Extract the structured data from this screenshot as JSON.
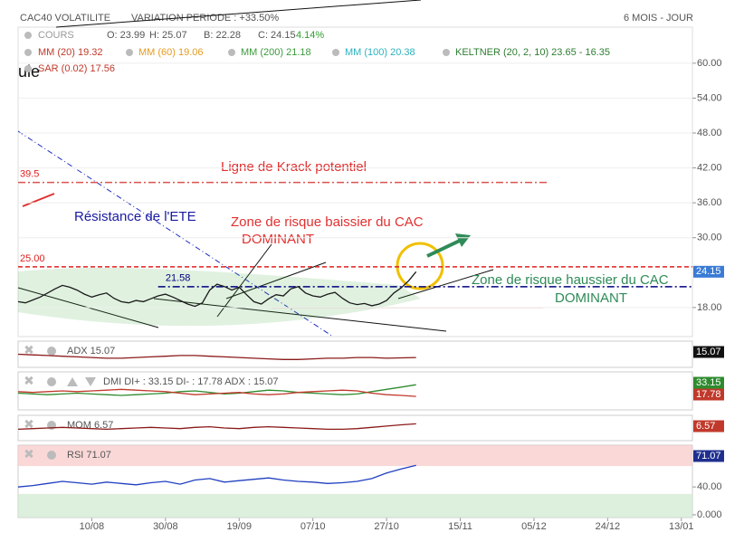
{
  "header": {
    "title": "CAC40 VOLATILITE",
    "variation": "VARIATION PERIODE : +33.50%",
    "period": "6 MOIS - JOUR"
  },
  "legend": {
    "cours": "COURS",
    "open": "O: 23.99",
    "high": "H: 25.07",
    "low": "B: 22.28",
    "close": "C: 24.15",
    "change": "4.14%",
    "mm20": "MM (20) 19.32",
    "mm60": "MM (60) 19.06",
    "mm200": "MM (200) 21.18",
    "mm100": "MM (100) 20.38",
    "keltner": "KELTNER (20, 2, 10) 23.65 - 16.35",
    "sar": "SAR (0.02) 17.56",
    "cut": "ule"
  },
  "annotations": [
    "Ligne de Krack potentiel",
    "Résistance de l'ETE",
    "Zone de risque baissier du CAC",
    "DOMINANT",
    "Zone de risque haussier du CAC",
    "DOMINANT"
  ],
  "chart_data": [
    {
      "type": "line",
      "xlim": [
        0,
        183
      ],
      "ylim": [
        13,
        66.2
      ],
      "xticks": [
        {
          "value": 20,
          "label": "10/08"
        },
        {
          "value": 40,
          "label": "30/08"
        },
        {
          "value": 60,
          "label": "19/09"
        },
        {
          "value": 80,
          "label": "07/10"
        },
        {
          "value": 100,
          "label": "27/10"
        },
        {
          "value": 120,
          "label": "15/11"
        },
        {
          "value": 140,
          "label": "05/12"
        },
        {
          "value": 160,
          "label": "24/12"
        },
        {
          "value": 180,
          "label": "13/01"
        }
      ],
      "yticks": [
        {
          "value": 18,
          "label": "18.00"
        },
        {
          "value": 30,
          "label": "30.00"
        },
        {
          "value": 36,
          "label": "36.00"
        },
        {
          "value": 42,
          "label": "42.00"
        },
        {
          "value": 48,
          "label": "48.00"
        },
        {
          "value": 54,
          "label": "54.00"
        },
        {
          "value": 60,
          "label": "60.00"
        }
      ],
      "grid": true,
      "hlines": [
        {
          "value": 39.5,
          "color": "#d9534f"
        },
        {
          "value": 25,
          "label": "25.00",
          "color": "#e02020"
        },
        {
          "value": 21.58,
          "color": "#000080"
        }
      ],
      "x": [
        0,
        2,
        4,
        6,
        8,
        10,
        12,
        14,
        16,
        18,
        20,
        22,
        24,
        26,
        28,
        30,
        32,
        34,
        36,
        38,
        40,
        42,
        44,
        46,
        48,
        50,
        52,
        54,
        56,
        58,
        60,
        62,
        64,
        66,
        68,
        70,
        72,
        74,
        76,
        78,
        80,
        82,
        84,
        86,
        88,
        90,
        92,
        94,
        96,
        98,
        100,
        102,
        104,
        106,
        108
      ],
      "series": [
        {
          "color": "#1a1a1a",
          "badge_color": "#3a7bd5",
          "values": [
            19.0,
            18.8,
            19.3,
            19.8,
            20.5,
            21.2,
            21.8,
            21.5,
            21.0,
            20.3,
            19.8,
            20.2,
            20.5,
            19.6,
            19.0,
            18.8,
            19.2,
            19.0,
            19.5,
            20.0,
            20.3,
            19.8,
            19.2,
            18.6,
            18.2,
            18.8,
            21.0,
            22.0,
            21.6,
            21.0,
            21.5,
            20.2,
            19.0,
            18.6,
            19.5,
            20.2,
            20.0,
            21.2,
            21.6,
            20.5,
            20.0,
            19.8,
            20.3,
            20.6,
            19.6,
            18.8,
            18.5,
            18.7,
            18.3,
            18.6,
            19.2,
            20.5,
            21.4,
            22.6,
            24.15
          ]
        }
      ]
    },
    {
      "type": "line",
      "label": "ADX 15.07",
      "ylim": [
        0,
        40
      ],
      "x": [
        0,
        4,
        8,
        12,
        16,
        20,
        24,
        28,
        32,
        36,
        40,
        44,
        48,
        52,
        56,
        60,
        64,
        68,
        72,
        76,
        80,
        84,
        88,
        92,
        96,
        100,
        104,
        108
      ],
      "series": [
        {
          "color": "#8b1a1a",
          "badge_color": "#111111",
          "values": [
            20,
            19,
            18,
            17,
            16,
            15,
            14,
            14,
            15,
            16,
            17,
            18,
            18,
            17,
            16,
            15,
            14,
            13,
            12,
            12,
            13,
            14,
            14,
            15,
            15,
            14,
            14.5,
            15.07
          ]
        }
      ]
    },
    {
      "type": "line",
      "label": "DMI DI+ : 33.15 DI- : 17.78 ADX : 15.07",
      "ylim": [
        0,
        50
      ],
      "x": [
        0,
        4,
        8,
        12,
        16,
        20,
        24,
        28,
        32,
        36,
        40,
        44,
        48,
        52,
        56,
        60,
        64,
        68,
        72,
        76,
        80,
        84,
        88,
        92,
        96,
        100,
        104,
        108
      ],
      "series": [
        {
          "color": "#2e8b2e",
          "badge_color": "#2e8b2e",
          "values": [
            22,
            21,
            20,
            21,
            22,
            21,
            20,
            19,
            20,
            21,
            22,
            24,
            25,
            23,
            21,
            22,
            24,
            26,
            25,
            23,
            22,
            21,
            20,
            21,
            24,
            27,
            30,
            33.15
          ]
        },
        {
          "color": "#c0392b",
          "badge_color": "#c0392b",
          "values": [
            24,
            23,
            24,
            25,
            24,
            25,
            26,
            27,
            26,
            25,
            24,
            22,
            20,
            21,
            22,
            23,
            21,
            20,
            21,
            23,
            24,
            25,
            26,
            25,
            22,
            20,
            19,
            17.78
          ]
        }
      ]
    },
    {
      "type": "line",
      "label": "MOM 6.57",
      "ylim": [
        -20,
        20
      ],
      "x": [
        0,
        4,
        8,
        12,
        16,
        20,
        24,
        28,
        32,
        36,
        40,
        44,
        48,
        52,
        56,
        60,
        64,
        68,
        72,
        76,
        80,
        84,
        88,
        92,
        96,
        100,
        104,
        108
      ],
      "series": [
        {
          "color": "#8b1a1a",
          "badge_color": "#c0392b",
          "values": [
            -2,
            -1,
            0,
            1,
            0,
            -1,
            -2,
            -1,
            0,
            1,
            0,
            -1,
            1,
            2,
            0,
            -1,
            1,
            2,
            1,
            0,
            -1,
            -2,
            -2,
            -1,
            1,
            3,
            5,
            6.57
          ]
        }
      ]
    },
    {
      "type": "line",
      "label": "RSI 71.07",
      "ylim": [
        -4,
        100
      ],
      "yticks": [
        {
          "value": 0,
          "label": "0.000"
        },
        {
          "value": 40,
          "label": "40.00"
        }
      ],
      "bands": [
        70,
        30
      ],
      "x": [
        0,
        4,
        8,
        12,
        16,
        20,
        24,
        28,
        32,
        36,
        40,
        44,
        48,
        52,
        56,
        60,
        64,
        68,
        72,
        76,
        80,
        84,
        88,
        92,
        96,
        100,
        104,
        108
      ],
      "series": [
        {
          "color": "#1f3fbf",
          "badge_color": "#1f2f8f",
          "values": [
            40,
            42,
            45,
            48,
            46,
            44,
            47,
            45,
            43,
            46,
            48,
            44,
            50,
            52,
            47,
            49,
            51,
            53,
            50,
            48,
            47,
            45,
            46,
            48,
            52,
            60,
            66,
            71.07
          ]
        }
      ]
    }
  ]
}
